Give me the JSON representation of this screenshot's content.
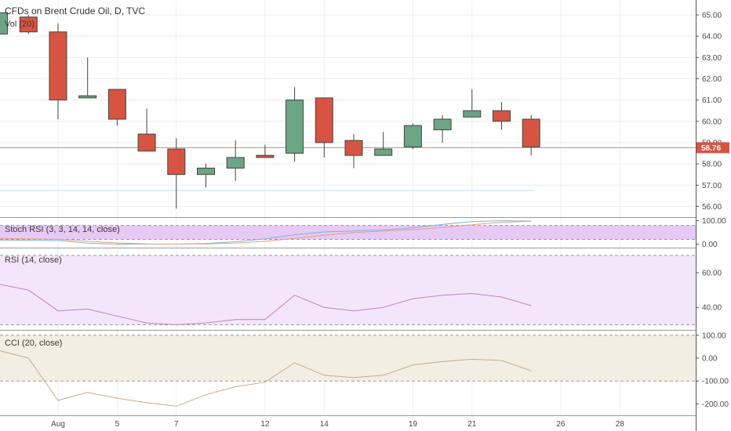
{
  "chart_data": {
    "type": "candlestick",
    "title": "CFDs on Brent Crude Oil, D, TVC",
    "volume_label": "Vol (20)",
    "current_price": 58.76,
    "current_price_label": "58.76",
    "colors": {
      "up": "#6ba583",
      "down": "#d75442",
      "price_line": "#e3897f",
      "stoch_k": "#7fb2d4",
      "stoch_d": "#e5a27f",
      "rsi": "#c67fbf",
      "cci": "#c4ad8d",
      "stoch_bg": "#e6c9f5",
      "rsi_bg": "#f3e6fb",
      "cci_bg": "#f3eee4"
    },
    "x_ticks": [
      {
        "label": "Aug",
        "day": 0
      },
      {
        "label": "5",
        "day": 2
      },
      {
        "label": "7",
        "day": 4
      },
      {
        "label": "12",
        "day": 7
      },
      {
        "label": "14",
        "day": 9
      },
      {
        "label": "19",
        "day": 12
      },
      {
        "label": "21",
        "day": 14
      },
      {
        "label": "26",
        "day": 17
      },
      {
        "label": "28",
        "day": 19
      }
    ],
    "price_axis": {
      "ylim": [
        55.5,
        65.7
      ],
      "ticks": [
        {
          "v": 65,
          "label": "65.00"
        },
        {
          "v": 64,
          "label": "64.00"
        },
        {
          "v": 63,
          "label": "63.00"
        },
        {
          "v": 62,
          "label": "62.00"
        },
        {
          "v": 61,
          "label": "61.00"
        },
        {
          "v": 60,
          "label": "60.00"
        },
        {
          "v": 59,
          "label": "59.00"
        },
        {
          "v": 58,
          "label": "58.00"
        },
        {
          "v": 57,
          "label": "57.00"
        },
        {
          "v": 56,
          "label": "56.00"
        }
      ]
    },
    "candles": [
      {
        "day": -2,
        "o": 64.1,
        "h": 65.5,
        "l": 63.9,
        "c": 65.1
      },
      {
        "day": -1,
        "o": 64.9,
        "h": 65.0,
        "l": 64.1,
        "c": 64.2
      },
      {
        "day": 0,
        "o": 64.2,
        "h": 64.6,
        "l": 60.1,
        "c": 61.0
      },
      {
        "day": 1,
        "o": 61.1,
        "h": 63.0,
        "l": 61.1,
        "c": 61.2
      },
      {
        "day": 2,
        "o": 61.5,
        "h": 61.5,
        "l": 59.8,
        "c": 60.1
      },
      {
        "day": 3,
        "o": 59.4,
        "h": 60.6,
        "l": 58.6,
        "c": 58.6
      },
      {
        "day": 4,
        "o": 58.7,
        "h": 59.2,
        "l": 55.9,
        "c": 57.5
      },
      {
        "day": 5,
        "o": 57.5,
        "h": 58.0,
        "l": 56.9,
        "c": 57.8
      },
      {
        "day": 6,
        "o": 57.8,
        "h": 59.1,
        "l": 57.2,
        "c": 58.3
      },
      {
        "day": 7,
        "o": 58.4,
        "h": 58.9,
        "l": 58.3,
        "c": 58.3
      },
      {
        "day": 8,
        "o": 58.5,
        "h": 61.6,
        "l": 58.1,
        "c": 61.0
      },
      {
        "day": 9,
        "o": 61.1,
        "h": 61.1,
        "l": 58.3,
        "c": 59.0
      },
      {
        "day": 10,
        "o": 59.1,
        "h": 59.4,
        "l": 57.8,
        "c": 58.4
      },
      {
        "day": 11,
        "o": 58.4,
        "h": 59.5,
        "l": 58.4,
        "c": 58.7
      },
      {
        "day": 12,
        "o": 58.8,
        "h": 59.9,
        "l": 58.7,
        "c": 59.8
      },
      {
        "day": 13,
        "o": 59.6,
        "h": 60.3,
        "l": 59.0,
        "c": 60.1
      },
      {
        "day": 14,
        "o": 60.2,
        "h": 61.5,
        "l": 60.2,
        "c": 60.5
      },
      {
        "day": 15,
        "o": 60.5,
        "h": 60.9,
        "l": 59.6,
        "c": 60.0
      },
      {
        "day": 16,
        "o": 60.1,
        "h": 60.3,
        "l": 58.4,
        "c": 58.8
      }
    ],
    "stoch_rsi": {
      "label": "Stoch RSI (3, 3, 14, 14, close)",
      "ylim": [
        -15,
        112
      ],
      "ticks": [
        {
          "v": 100,
          "label": "100.00"
        },
        {
          "v": 0,
          "label": "0.00"
        }
      ],
      "bands": [
        80,
        20
      ],
      "k": [
        {
          "day": -2.2,
          "v": 18
        },
        {
          "day": 0,
          "v": 15
        },
        {
          "day": 1,
          "v": 4
        },
        {
          "day": 2,
          "v": 0
        },
        {
          "day": 3,
          "v": 0
        },
        {
          "day": 4,
          "v": 0
        },
        {
          "day": 5,
          "v": 3
        },
        {
          "day": 6,
          "v": 10
        },
        {
          "day": 7,
          "v": 22
        },
        {
          "day": 8,
          "v": 40
        },
        {
          "day": 9,
          "v": 52
        },
        {
          "day": 10,
          "v": 56
        },
        {
          "day": 11,
          "v": 60
        },
        {
          "day": 12,
          "v": 70
        },
        {
          "day": 13,
          "v": 84
        },
        {
          "day": 14,
          "v": 96
        },
        {
          "day": 15,
          "v": 100
        },
        {
          "day": 16,
          "v": 98
        }
      ],
      "d": [
        {
          "day": -2.2,
          "v": 25
        },
        {
          "day": 0,
          "v": 20
        },
        {
          "day": 1,
          "v": 12
        },
        {
          "day": 2,
          "v": 5
        },
        {
          "day": 3,
          "v": 1
        },
        {
          "day": 4,
          "v": 0
        },
        {
          "day": 5,
          "v": 1
        },
        {
          "day": 6,
          "v": 4
        },
        {
          "day": 7,
          "v": 12
        },
        {
          "day": 8,
          "v": 24
        },
        {
          "day": 9,
          "v": 38
        },
        {
          "day": 10,
          "v": 49
        },
        {
          "day": 11,
          "v": 56
        },
        {
          "day": 12,
          "v": 62
        },
        {
          "day": 13,
          "v": 71
        },
        {
          "day": 14,
          "v": 83
        },
        {
          "day": 15,
          "v": 93
        },
        {
          "day": 16,
          "v": 98
        }
      ]
    },
    "rsi": {
      "label": "RSI (14, close)",
      "ylim": [
        27,
        74
      ],
      "ticks": [
        {
          "v": 60,
          "label": "60.00"
        },
        {
          "v": 40,
          "label": "40.00"
        }
      ],
      "bands": [
        70,
        30
      ],
      "values": [
        {
          "day": -2.2,
          "v": 54
        },
        {
          "day": -1,
          "v": 50
        },
        {
          "day": 0,
          "v": 38
        },
        {
          "day": 1,
          "v": 39
        },
        {
          "day": 2,
          "v": 35
        },
        {
          "day": 3,
          "v": 31
        },
        {
          "day": 4,
          "v": 30
        },
        {
          "day": 5,
          "v": 31
        },
        {
          "day": 6,
          "v": 33
        },
        {
          "day": 7,
          "v": 33
        },
        {
          "day": 8,
          "v": 47
        },
        {
          "day": 9,
          "v": 40
        },
        {
          "day": 10,
          "v": 38
        },
        {
          "day": 11,
          "v": 40
        },
        {
          "day": 12,
          "v": 45
        },
        {
          "day": 13,
          "v": 47
        },
        {
          "day": 14,
          "v": 48
        },
        {
          "day": 15,
          "v": 46
        },
        {
          "day": 16,
          "v": 41
        }
      ]
    },
    "cci": {
      "label": "CCI (20, close)",
      "ylim": [
        -250,
        120
      ],
      "ticks": [
        {
          "v": 100,
          "label": "100.00"
        },
        {
          "v": 0,
          "label": "0.00"
        },
        {
          "v": -100,
          "label": "-100.00"
        },
        {
          "v": -200,
          "label": "-200.00"
        }
      ],
      "bands": [
        100,
        -100
      ],
      "values": [
        {
          "day": -2.2,
          "v": 40
        },
        {
          "day": -1,
          "v": 0
        },
        {
          "day": 0,
          "v": -185
        },
        {
          "day": 1,
          "v": -150
        },
        {
          "day": 2,
          "v": -175
        },
        {
          "day": 3,
          "v": -195
        },
        {
          "day": 4,
          "v": -210
        },
        {
          "day": 5,
          "v": -160
        },
        {
          "day": 6,
          "v": -125
        },
        {
          "day": 7,
          "v": -105
        },
        {
          "day": 8,
          "v": -20
        },
        {
          "day": 9,
          "v": -75
        },
        {
          "day": 10,
          "v": -85
        },
        {
          "day": 11,
          "v": -75
        },
        {
          "day": 12,
          "v": -30
        },
        {
          "day": 13,
          "v": -15
        },
        {
          "day": 14,
          "v": -5
        },
        {
          "day": 15,
          "v": -10
        },
        {
          "day": 16,
          "v": -55
        }
      ]
    }
  }
}
